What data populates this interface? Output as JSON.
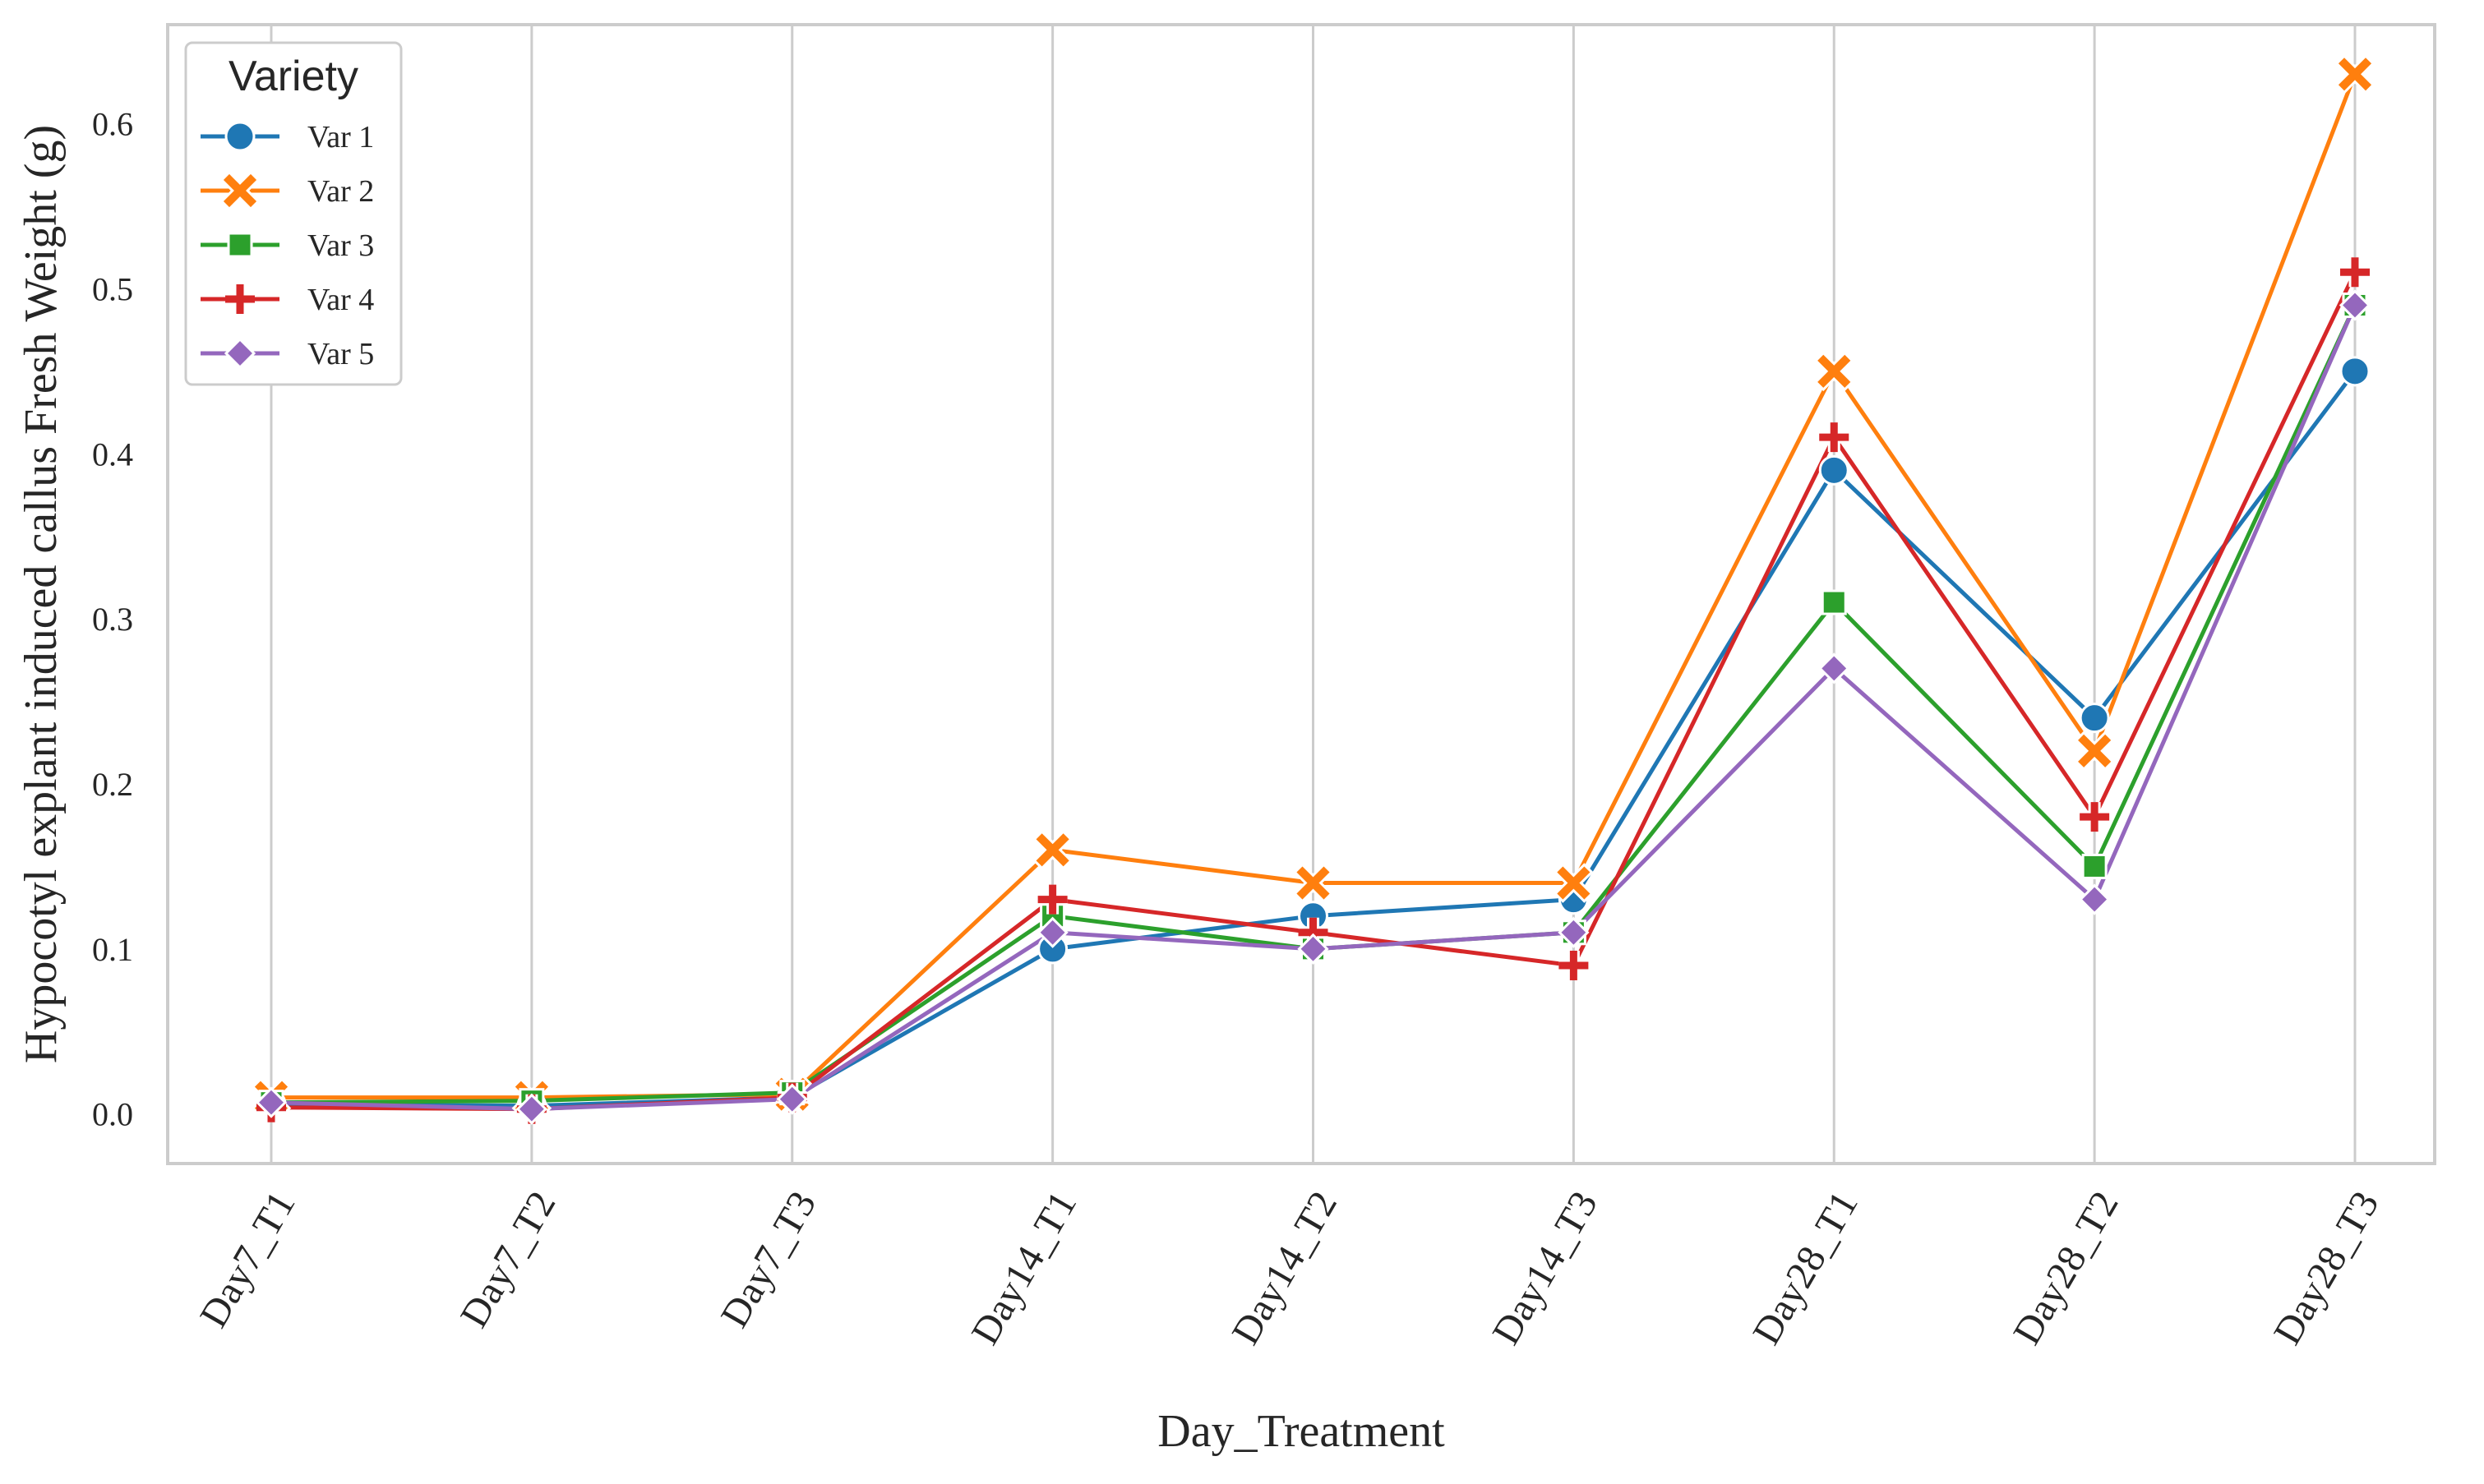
{
  "chart_data": {
    "type": "line",
    "xlabel": "Day_Treatment",
    "ylabel": "Hypocotyl explant induced callus Fresh Weight (g)",
    "categories": [
      "Day7_T1",
      "Day7_T2",
      "Day7_T3",
      "Day14_T1",
      "Day14_T2",
      "Day14_T3",
      "Day28_T1",
      "Day28_T2",
      "Day28_T3"
    ],
    "ylim": [
      -0.03,
      0.66
    ],
    "yticks": [
      0.0,
      0.1,
      0.2,
      0.3,
      0.4,
      0.5,
      0.6
    ],
    "ytick_labels": [
      "0.0",
      "0.1",
      "0.2",
      "0.3",
      "0.4",
      "0.5",
      "0.6"
    ],
    "grid": "vertical",
    "legend": {
      "title": "Variety",
      "placement": "top-left"
    },
    "series": [
      {
        "name": "Var 1",
        "color": "#1f77b4",
        "marker": "circle",
        "values": [
          0.006,
          0.005,
          0.01,
          0.1,
          0.12,
          0.13,
          0.39,
          0.24,
          0.45
        ]
      },
      {
        "name": "Var 2",
        "color": "#ff7f0e",
        "marker": "x",
        "values": [
          0.01,
          0.01,
          0.012,
          0.16,
          0.14,
          0.14,
          0.45,
          0.22,
          0.63
        ]
      },
      {
        "name": "Var 3",
        "color": "#2ca02c",
        "marker": "square",
        "values": [
          0.007,
          0.008,
          0.013,
          0.12,
          0.1,
          0.11,
          0.31,
          0.15,
          0.49
        ]
      },
      {
        "name": "Var 4",
        "color": "#d62728",
        "marker": "plus",
        "values": [
          0.004,
          0.003,
          0.01,
          0.13,
          0.11,
          0.09,
          0.41,
          0.18,
          0.51
        ]
      },
      {
        "name": "Var 5",
        "color": "#9467bd",
        "marker": "diamond",
        "values": [
          0.007,
          0.003,
          0.009,
          0.11,
          0.1,
          0.11,
          0.27,
          0.13,
          0.49
        ]
      }
    ]
  }
}
